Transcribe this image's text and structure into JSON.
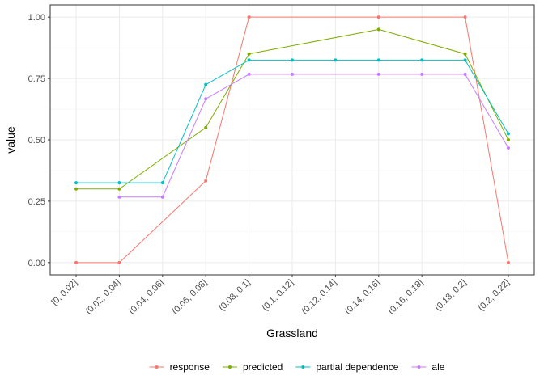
{
  "chart_data": {
    "type": "line",
    "xlabel": "Grassland",
    "ylabel": "value",
    "categories": [
      "[0, 0.02]",
      "(0.02, 0.04]",
      "(0.04, 0.06]",
      "(0.06, 0.08]",
      "(0.08, 0.1]",
      "(0.1, 0.12]",
      "(0.12, 0.14]",
      "(0.14, 0.16]",
      "(0.16, 0.18]",
      "(0.18, 0.2]",
      "(0.2, 0.22]"
    ],
    "ylim": [
      -0.05,
      1.05
    ],
    "yticks": [
      0.0,
      0.25,
      0.5,
      0.75,
      1.0
    ],
    "ytick_labels": [
      "0.00",
      "0.25",
      "0.50",
      "0.75",
      "1.00"
    ],
    "grid": true,
    "legend_position": "bottom",
    "series": [
      {
        "name": "response",
        "color": "#F8766D",
        "x": [
          0,
          1,
          3,
          4,
          7,
          9,
          10
        ],
        "values": [
          0.0,
          0.0,
          0.333,
          1.0,
          1.0,
          1.0,
          0.0
        ]
      },
      {
        "name": "predicted",
        "color": "#7CAE00",
        "x": [
          0,
          1,
          3,
          4,
          7,
          9,
          10
        ],
        "values": [
          0.3,
          0.3,
          0.55,
          0.85,
          0.95,
          0.85,
          0.5
        ]
      },
      {
        "name": "partial dependence",
        "color": "#00BFC4",
        "x": [
          0,
          1,
          2,
          3,
          4,
          5,
          6,
          7,
          8,
          9,
          10
        ],
        "values": [
          0.325,
          0.325,
          0.325,
          0.725,
          0.825,
          0.825,
          0.825,
          0.825,
          0.825,
          0.825,
          0.525
        ]
      },
      {
        "name": "ale",
        "color": "#C77CFF",
        "x": [
          1,
          2,
          3,
          4,
          5,
          7,
          8,
          9,
          10
        ],
        "values": [
          0.267,
          0.267,
          0.667,
          0.767,
          0.767,
          0.767,
          0.767,
          0.767,
          0.467
        ]
      }
    ]
  }
}
